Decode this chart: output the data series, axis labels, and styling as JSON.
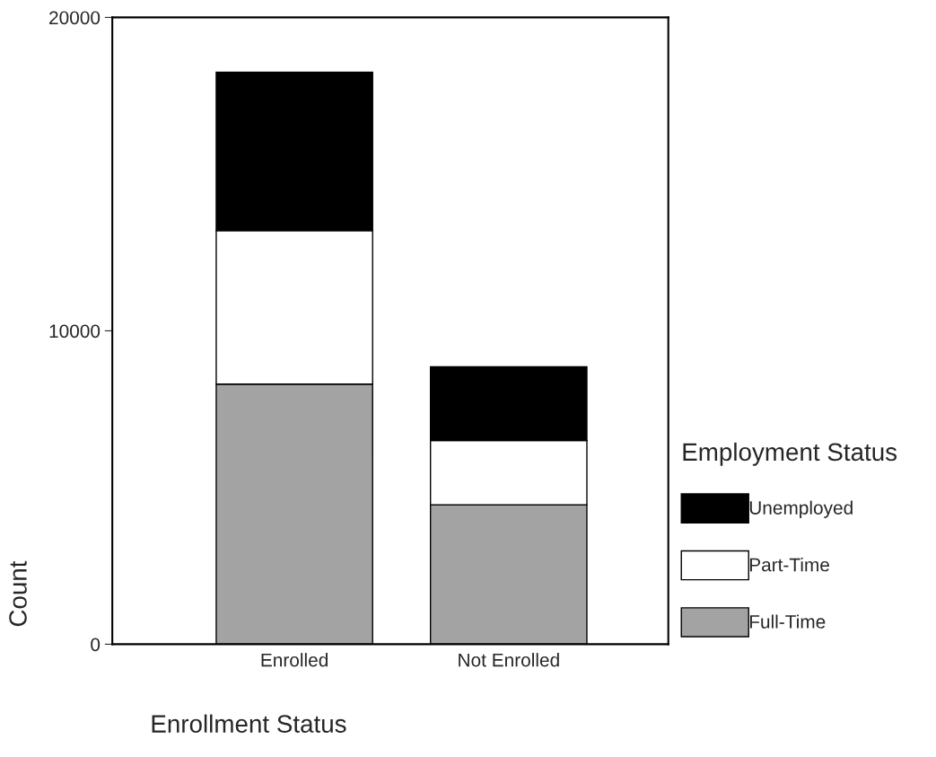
{
  "chart_data": {
    "type": "bar",
    "stacked": true,
    "categories": [
      "Enrolled",
      "Not Enrolled"
    ],
    "series": [
      {
        "name": "Full-Time",
        "color": "#a3a3a3",
        "values": [
          8300,
          4450
        ]
      },
      {
        "name": "Part-Time",
        "color": "#ffffff",
        "values": [
          4900,
          2050
        ]
      },
      {
        "name": "Unemployed",
        "color": "#000000",
        "values": [
          5050,
          2350
        ]
      }
    ],
    "xlabel": "Enrollment Status",
    "ylabel": "Count",
    "legend_title": "Employment Status",
    "ylim": [
      0,
      20000
    ],
    "yticks": [
      0,
      10000,
      20000
    ],
    "grid": false,
    "legend": "right"
  }
}
